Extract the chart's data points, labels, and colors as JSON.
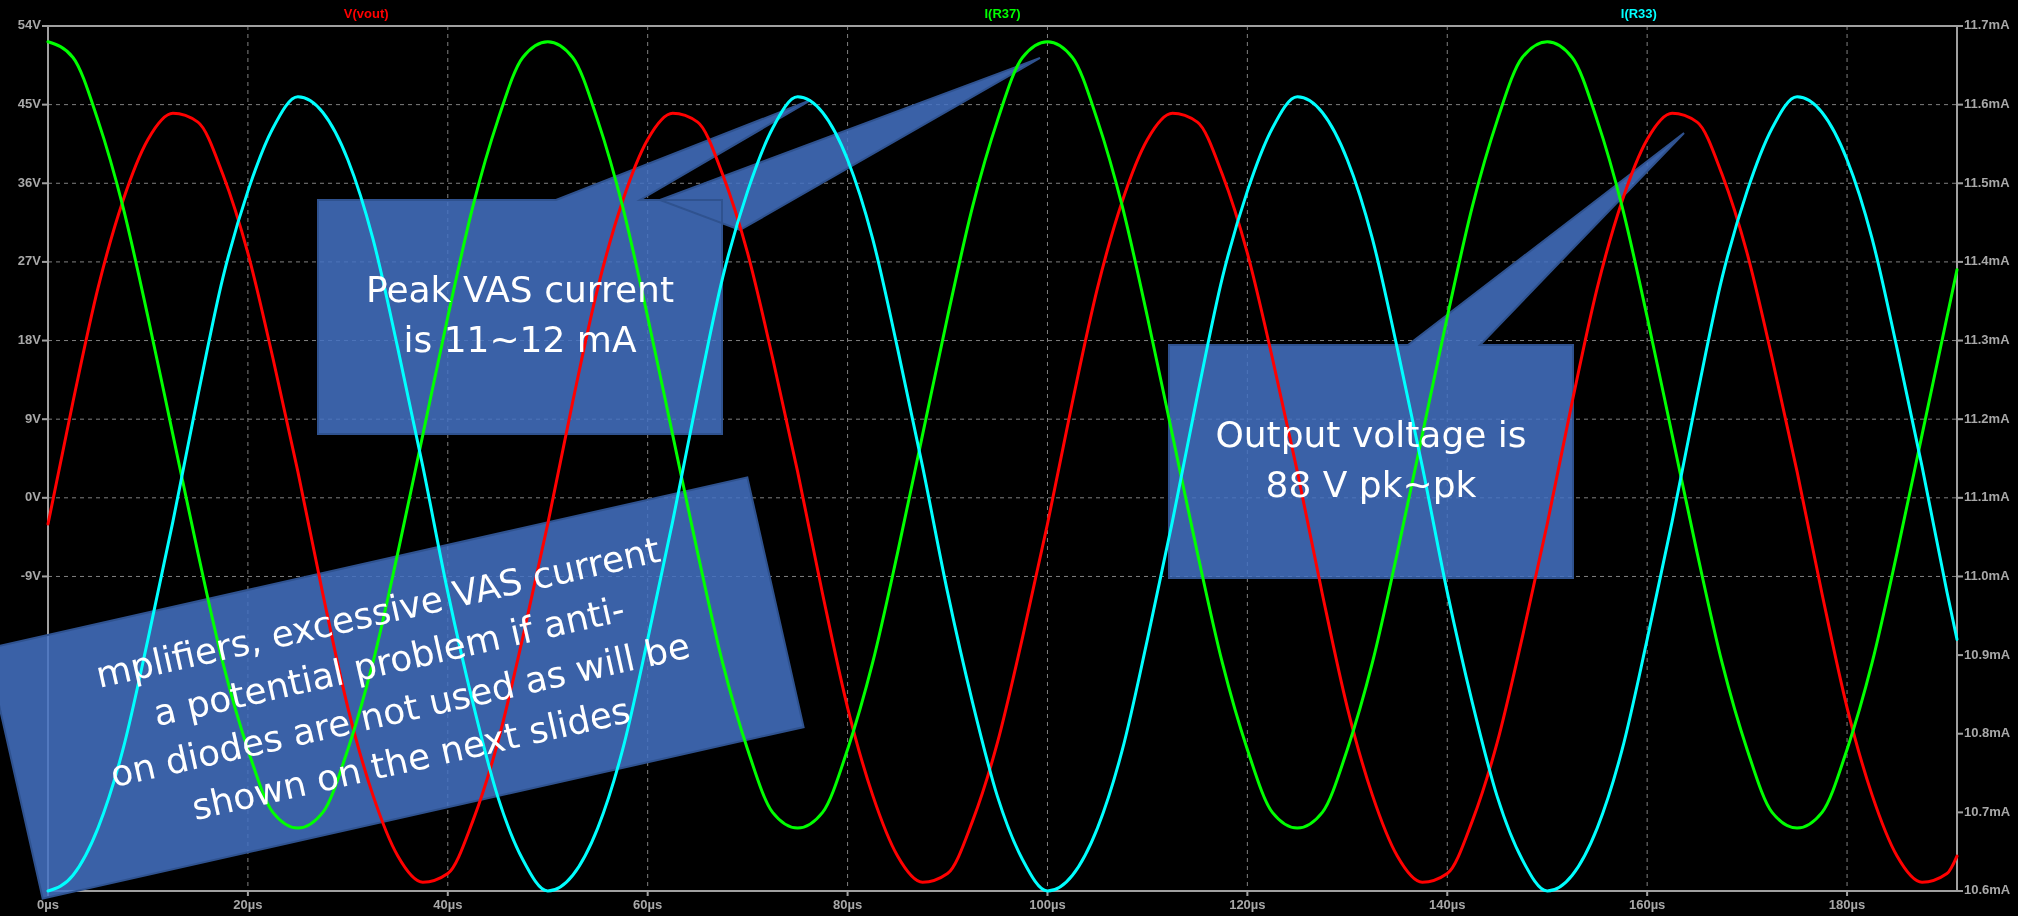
{
  "chart_data": {
    "type": "line",
    "x": [
      0,
      2.5,
      5,
      7.5,
      10,
      12.5,
      15,
      17.5,
      20,
      22.5,
      25,
      27.5,
      30,
      32.5,
      35,
      37.5,
      40,
      42.5,
      45,
      47.5,
      50,
      52.5,
      55,
      57.5,
      60,
      62.5,
      65,
      67.5,
      70,
      72.5,
      75,
      77.5,
      80,
      82.5,
      85,
      87.5,
      90,
      92.5,
      95,
      97.5,
      100,
      102.5,
      105,
      107.5,
      110,
      112.5,
      115,
      117.5,
      120,
      122.5,
      125,
      127.5,
      130,
      132.5,
      135,
      137.5,
      140,
      142.5,
      145,
      147.5,
      150,
      152.5,
      155,
      157.5,
      160,
      162.5,
      165,
      167.5,
      170,
      172.5,
      175,
      177.5,
      180,
      182.5,
      185,
      187.5,
      190,
      191
    ],
    "series": [
      {
        "name": "V(vout)",
        "color": "#ff0000",
        "values": [
          -3,
          11,
          24,
          34,
          41,
          44,
          43,
          37,
          28,
          16,
          3,
          -11,
          -24,
          -34,
          -41,
          -44,
          -43,
          -37,
          -28,
          -16,
          -3,
          11,
          24,
          34,
          41,
          44,
          43,
          37,
          28,
          16,
          3,
          -11,
          -24,
          -34,
          -41,
          -44,
          -43,
          -37,
          -28,
          -16,
          -3,
          11,
          24,
          34,
          41,
          44,
          43,
          37,
          28,
          16,
          3,
          -11,
          -24,
          -34,
          -41,
          -44,
          -43,
          -37,
          -28,
          -16,
          -3,
          11,
          24,
          34,
          41,
          44,
          43,
          37,
          28,
          16,
          3,
          -11,
          -24,
          -34,
          -41,
          -44,
          -43,
          -41
        ]
      },
      {
        "name": "I(R37)",
        "color": "#00ff00",
        "axis": "y2",
        "values": [
          11.68,
          11.66,
          11.58,
          11.47,
          11.33,
          11.18,
          11.03,
          10.89,
          10.78,
          10.7,
          10.68,
          10.7,
          10.78,
          10.89,
          11.03,
          11.18,
          11.33,
          11.47,
          11.58,
          11.66,
          11.68,
          11.66,
          11.58,
          11.47,
          11.33,
          11.18,
          11.03,
          10.89,
          10.78,
          10.7,
          10.68,
          10.7,
          10.78,
          10.89,
          11.03,
          11.18,
          11.33,
          11.47,
          11.58,
          11.66,
          11.68,
          11.66,
          11.58,
          11.47,
          11.33,
          11.18,
          11.03,
          10.89,
          10.78,
          10.7,
          10.68,
          10.7,
          10.78,
          10.89,
          11.03,
          11.18,
          11.33,
          11.47,
          11.58,
          11.66,
          11.68,
          11.66,
          11.58,
          11.47,
          11.33,
          11.18,
          11.03,
          10.89,
          10.78,
          10.7,
          10.68,
          10.7,
          10.78,
          10.89,
          11.03,
          11.18,
          11.33,
          11.39
        ]
      },
      {
        "name": "I(R33)",
        "color": "#00ffff",
        "axis": "y2",
        "values": [
          10.6,
          10.62,
          10.68,
          10.78,
          10.92,
          11.07,
          11.23,
          11.38,
          11.49,
          11.57,
          11.61,
          11.59,
          11.53,
          11.43,
          11.29,
          11.14,
          10.98,
          10.84,
          10.72,
          10.64,
          10.6,
          10.62,
          10.68,
          10.78,
          10.92,
          11.07,
          11.23,
          11.38,
          11.49,
          11.57,
          11.61,
          11.59,
          11.53,
          11.43,
          11.29,
          11.14,
          10.98,
          10.84,
          10.72,
          10.64,
          10.6,
          10.62,
          10.68,
          10.78,
          10.92,
          11.07,
          11.23,
          11.38,
          11.49,
          11.57,
          11.61,
          11.59,
          11.53,
          11.43,
          11.29,
          11.14,
          10.98,
          10.84,
          10.72,
          10.64,
          10.6,
          10.62,
          10.68,
          10.78,
          10.92,
          11.07,
          11.23,
          11.38,
          11.49,
          11.57,
          11.61,
          11.59,
          11.53,
          11.43,
          11.29,
          11.14,
          10.98,
          10.92
        ]
      }
    ],
    "xlim": [
      0,
      191
    ],
    "xticks": [
      {
        "value": 0,
        "label": "0µs"
      },
      {
        "value": 20,
        "label": "20µs"
      },
      {
        "value": 40,
        "label": "40µs"
      },
      {
        "value": 60,
        "label": "60µs"
      },
      {
        "value": 80,
        "label": "80µs"
      },
      {
        "value": 100,
        "label": "100µs"
      },
      {
        "value": 120,
        "label": "120µs"
      },
      {
        "value": 140,
        "label": "140µs"
      },
      {
        "value": 160,
        "label": "160µs"
      },
      {
        "value": 180,
        "label": "180µs"
      }
    ],
    "ylim": [
      -45,
      54
    ],
    "yticks": [
      {
        "value": -9,
        "label": "-9V"
      },
      {
        "value": 0,
        "label": "0V"
      },
      {
        "value": 9,
        "label": "9V"
      },
      {
        "value": 18,
        "label": "18V"
      },
      {
        "value": 27,
        "label": "27V"
      },
      {
        "value": 36,
        "label": "36V"
      },
      {
        "value": 45,
        "label": "45V"
      },
      {
        "value": 54,
        "label": "54V"
      }
    ],
    "y2lim": [
      10.6,
      11.7
    ],
    "y2ticks": [
      {
        "value": 10.6,
        "label": "10.6mA"
      },
      {
        "value": 10.7,
        "label": "10.7mA"
      },
      {
        "value": 10.8,
        "label": "10.8mA"
      },
      {
        "value": 10.9,
        "label": "10.9mA"
      },
      {
        "value": 11.0,
        "label": "11.0mA"
      },
      {
        "value": 11.1,
        "label": "11.1mA"
      },
      {
        "value": 11.2,
        "label": "11.2mA"
      },
      {
        "value": 11.3,
        "label": "11.3mA"
      },
      {
        "value": 11.4,
        "label": "11.4mA"
      },
      {
        "value": 11.5,
        "label": "11.5mA"
      },
      {
        "value": 11.6,
        "label": "11.6mA"
      },
      {
        "value": 11.7,
        "label": "11.7mA"
      }
    ],
    "grid": true,
    "legend": "top",
    "marker": "none",
    "line_style": "solid",
    "annotations": [
      "Peak VAS current\nis 11~12 mA",
      "Output voltage is\n88 V pk~pk",
      "mplifiers, excessive VAS current\na potential problem if anti-\non diodes are not used as will be\nshown on the next slides"
    ]
  }
}
